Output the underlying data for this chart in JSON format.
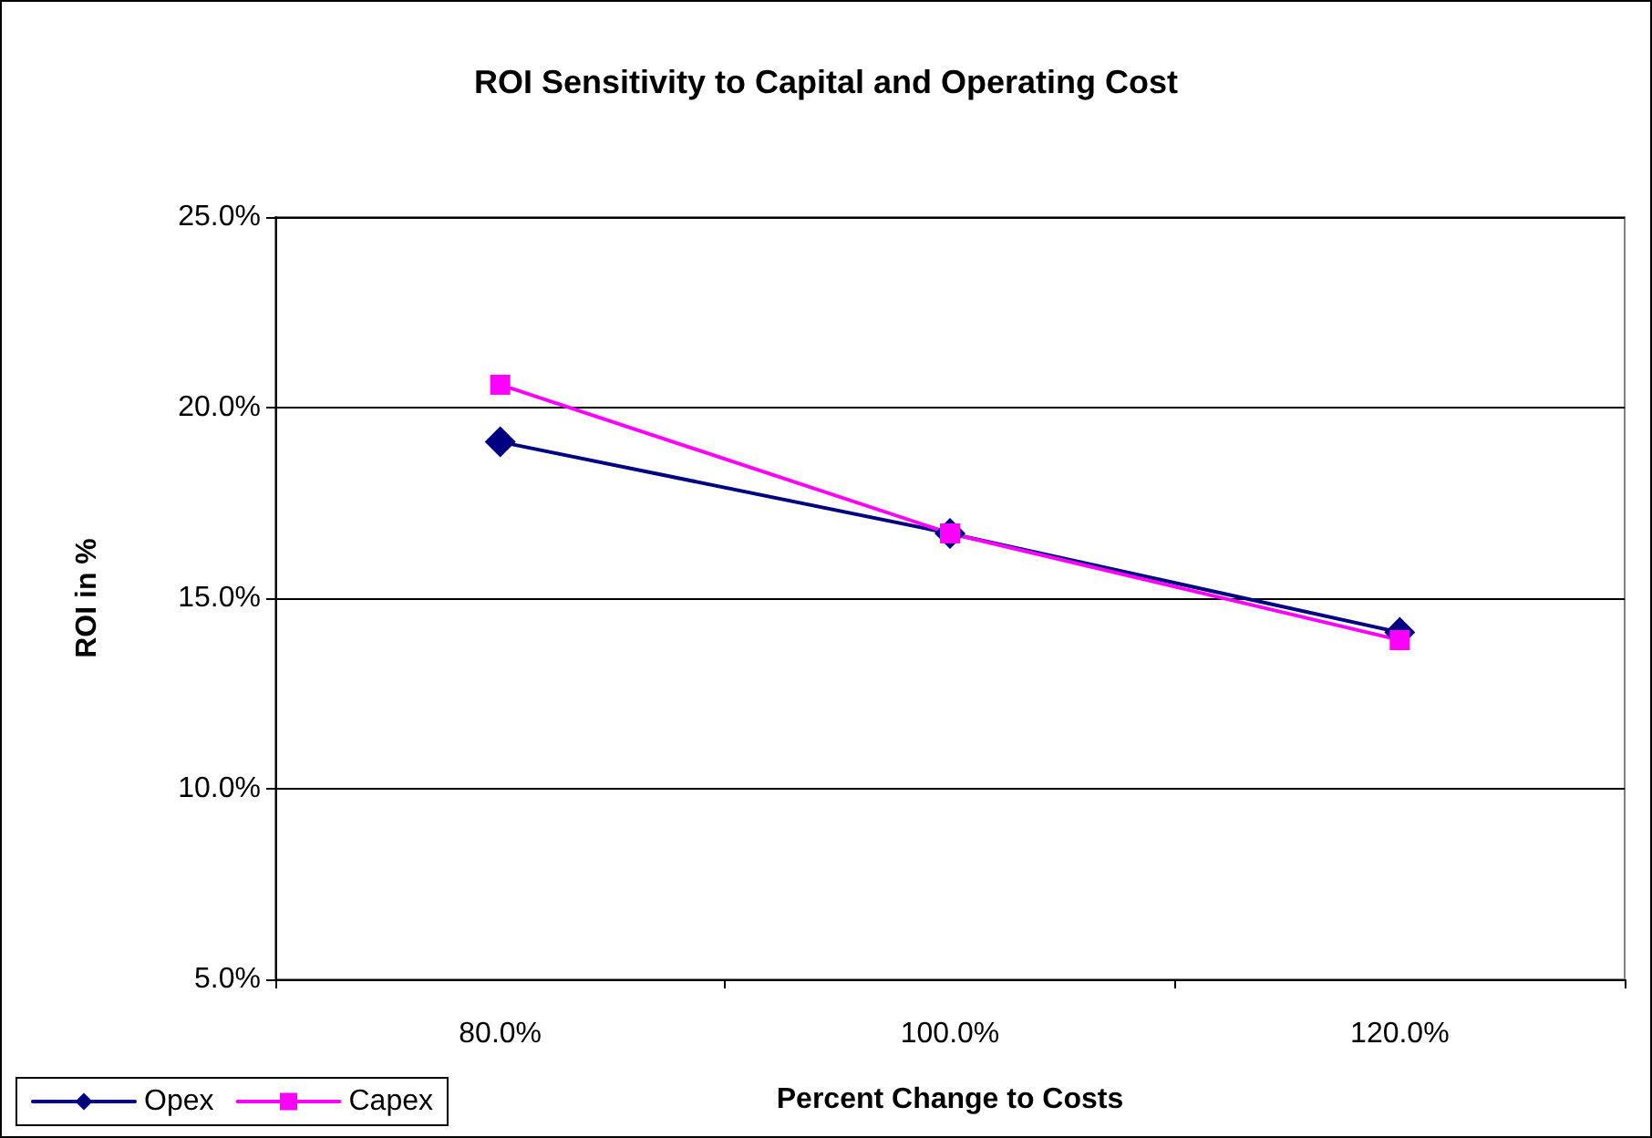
{
  "chart_data": {
    "type": "line",
    "title": "ROI Sensitivity to Capital and Operating Cost",
    "xlabel": "Percent Change to Costs",
    "ylabel": "ROI in %",
    "categories": [
      "80.0%",
      "100.0%",
      "120.0%"
    ],
    "series": [
      {
        "name": "Opex",
        "color": "#000080",
        "marker": "diamond",
        "values": [
          19.1,
          16.7,
          14.1
        ]
      },
      {
        "name": "Capex",
        "color": "#ff00ff",
        "marker": "square",
        "values": [
          20.6,
          16.7,
          13.9
        ]
      }
    ],
    "ylim": [
      5,
      25
    ],
    "yticks": [
      {
        "value": 5,
        "label": "5.0%"
      },
      {
        "value": 10,
        "label": "10.0%"
      },
      {
        "value": 15,
        "label": "15.0%"
      },
      {
        "value": 20,
        "label": "20.0%"
      },
      {
        "value": 25,
        "label": "25.0%"
      }
    ],
    "grid": "y",
    "legend": "bottom left"
  }
}
